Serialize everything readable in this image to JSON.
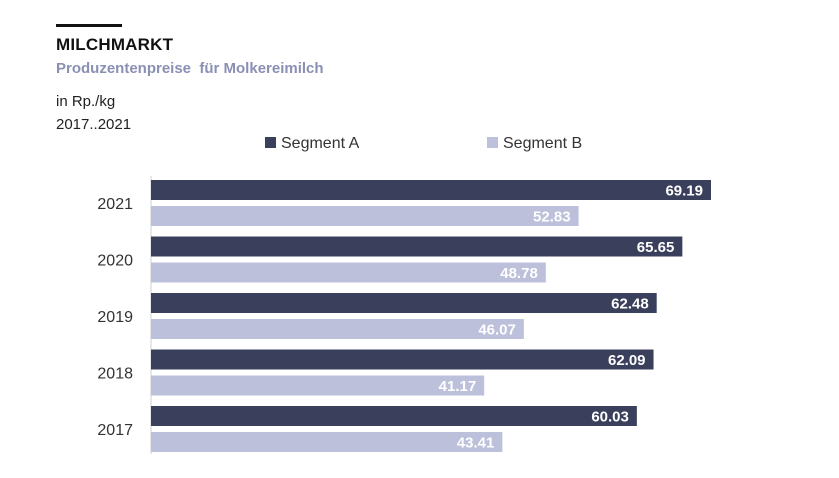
{
  "header": {
    "title": "MILCHMARKT",
    "subtitle": "Produzentenpreise  für Molkereimilch",
    "unit": "in Rp./kg",
    "period": "2017..2021"
  },
  "colors": {
    "segment_a": "#3a3f5c",
    "segment_b": "#bcc0db",
    "subtitle": "#8a90b4"
  },
  "chart_data": {
    "type": "bar",
    "orientation": "horizontal",
    "categories": [
      "2021",
      "2020",
      "2019",
      "2018",
      "2017"
    ],
    "series": [
      {
        "name": "Segment A",
        "values": [
          69.19,
          65.65,
          62.48,
          62.09,
          60.03
        ]
      },
      {
        "name": "Segment B",
        "values": [
          52.83,
          48.78,
          46.07,
          41.17,
          43.41
        ]
      }
    ],
    "xlim": [
      0,
      70
    ],
    "legend": "top",
    "grid": false,
    "value_labels": "inside-end"
  }
}
